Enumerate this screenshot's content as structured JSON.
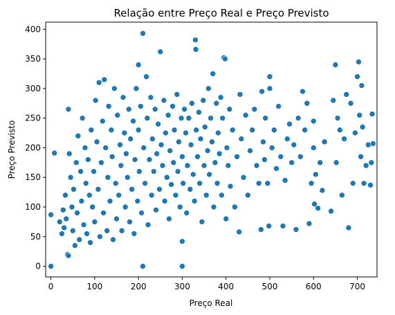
{
  "chart_data": {
    "type": "scatter",
    "title": "Relação entre Preço Real e Preço Previsto",
    "xlabel": "Preço Real",
    "ylabel": "Preço Previsto",
    "xlim": [
      -12,
      745
    ],
    "ylim": [
      -18,
      412
    ],
    "xticks": [
      0,
      100,
      200,
      300,
      400,
      500,
      600,
      700
    ],
    "yticks": [
      0,
      50,
      100,
      150,
      200,
      250,
      300,
      350,
      400
    ],
    "xtick_labels": [
      "0",
      "100",
      "200",
      "300",
      "400",
      "500",
      "600",
      "700"
    ],
    "ytick_labels": [
      "0",
      "50",
      "100",
      "150",
      "200",
      "250",
      "300",
      "350",
      "400"
    ],
    "grid": false,
    "marker_color": "#1f77b4",
    "points": [
      [
        0,
        0
      ],
      [
        0,
        87
      ],
      [
        8,
        191
      ],
      [
        210,
        0
      ],
      [
        300,
        0
      ],
      [
        20,
        75
      ],
      [
        25,
        55
      ],
      [
        28,
        95
      ],
      [
        30,
        65
      ],
      [
        33,
        120
      ],
      [
        35,
        80
      ],
      [
        38,
        20
      ],
      [
        40,
        18
      ],
      [
        40,
        265
      ],
      [
        42,
        190
      ],
      [
        45,
        150
      ],
      [
        48,
        100
      ],
      [
        50,
        60
      ],
      [
        52,
        130
      ],
      [
        55,
        35
      ],
      [
        58,
        175
      ],
      [
        60,
        90
      ],
      [
        62,
        220
      ],
      [
        65,
        45
      ],
      [
        68,
        160
      ],
      [
        70,
        110
      ],
      [
        72,
        250
      ],
      [
        75,
        70
      ],
      [
        78,
        200
      ],
      [
        80,
        140
      ],
      [
        82,
        55
      ],
      [
        85,
        180
      ],
      [
        88,
        120
      ],
      [
        90,
        40
      ],
      [
        92,
        230
      ],
      [
        95,
        100
      ],
      [
        98,
        160
      ],
      [
        100,
        75
      ],
      [
        102,
        280
      ],
      [
        105,
        210
      ],
      [
        108,
        130
      ],
      [
        110,
        310
      ],
      [
        112,
        50
      ],
      [
        115,
        175
      ],
      [
        118,
        245
      ],
      [
        120,
        90
      ],
      [
        122,
        315
      ],
      [
        125,
        200
      ],
      [
        128,
        60
      ],
      [
        130,
        150
      ],
      [
        132,
        270
      ],
      [
        135,
        110
      ],
      [
        138,
        230
      ],
      [
        140,
        185
      ],
      [
        142,
        45
      ],
      [
        145,
        300
      ],
      [
        148,
        140
      ],
      [
        150,
        80
      ],
      [
        152,
        255
      ],
      [
        155,
        120
      ],
      [
        158,
        205
      ],
      [
        160,
        170
      ],
      [
        162,
        60
      ],
      [
        165,
        285
      ],
      [
        168,
        225
      ],
      [
        170,
        100
      ],
      [
        172,
        190
      ],
      [
        175,
        150
      ],
      [
        178,
        265
      ],
      [
        180,
        75
      ],
      [
        182,
        215
      ],
      [
        185,
        130
      ],
      [
        188,
        245
      ],
      [
        190,
        55
      ],
      [
        192,
        180
      ],
      [
        195,
        300
      ],
      [
        198,
        110
      ],
      [
        200,
        230
      ],
      [
        200,
        340
      ],
      [
        202,
        160
      ],
      [
        205,
        270
      ],
      [
        207,
        90
      ],
      [
        210,
        393
      ],
      [
        212,
        200
      ],
      [
        215,
        140
      ],
      [
        218,
        320
      ],
      [
        220,
        250
      ],
      [
        222,
        70
      ],
      [
        225,
        180
      ],
      [
        228,
        285
      ],
      [
        230,
        120
      ],
      [
        232,
        215
      ],
      [
        235,
        160
      ],
      [
        238,
        265
      ],
      [
        240,
        95
      ],
      [
        242,
        190
      ],
      [
        245,
        240
      ],
      [
        248,
        130
      ],
      [
        250,
        362
      ],
      [
        252,
        205
      ],
      [
        255,
        170
      ],
      [
        258,
        280
      ],
      [
        260,
        110
      ],
      [
        262,
        225
      ],
      [
        265,
        150
      ],
      [
        268,
        255
      ],
      [
        270,
        80
      ],
      [
        272,
        195
      ],
      [
        275,
        138
      ],
      [
        278,
        270
      ],
      [
        280,
        175
      ],
      [
        282,
        230
      ],
      [
        285,
        120
      ],
      [
        288,
        290
      ],
      [
        290,
        160
      ],
      [
        292,
        210
      ],
      [
        295,
        100
      ],
      [
        298,
        250
      ],
      [
        300,
        42
      ],
      [
        300,
        185
      ],
      [
        302,
        140
      ],
      [
        305,
        265
      ],
      [
        308,
        225
      ],
      [
        310,
        90
      ],
      [
        312,
        170
      ],
      [
        315,
        250
      ],
      [
        318,
        130
      ],
      [
        320,
        205
      ],
      [
        322,
        275
      ],
      [
        325,
        155
      ],
      [
        328,
        110
      ],
      [
        330,
        382
      ],
      [
        331,
        366
      ],
      [
        332,
        230
      ],
      [
        335,
        185
      ],
      [
        338,
        260
      ],
      [
        340,
        140
      ],
      [
        342,
        215
      ],
      [
        345,
        75
      ],
      [
        348,
        280
      ],
      [
        350,
        170
      ],
      [
        352,
        235
      ],
      [
        355,
        120
      ],
      [
        358,
        195
      ],
      [
        360,
        300
      ],
      [
        362,
        155
      ],
      [
        365,
        250
      ],
      [
        368,
        210
      ],
      [
        370,
        325
      ],
      [
        372,
        100
      ],
      [
        375,
        175
      ],
      [
        378,
        275
      ],
      [
        380,
        140
      ],
      [
        382,
        225
      ],
      [
        385,
        190
      ],
      [
        388,
        285
      ],
      [
        390,
        120
      ],
      [
        392,
        250
      ],
      [
        395,
        352
      ],
      [
        398,
        350
      ],
      [
        400,
        80
      ],
      [
        402,
        200
      ],
      [
        405,
        170
      ],
      [
        408,
        265
      ],
      [
        410,
        135
      ],
      [
        415,
        230
      ],
      [
        420,
        100
      ],
      [
        425,
        185
      ],
      [
        430,
        58
      ],
      [
        432,
        290
      ],
      [
        435,
        215
      ],
      [
        440,
        150
      ],
      [
        445,
        255
      ],
      [
        450,
        120
      ],
      [
        455,
        195
      ],
      [
        460,
        230
      ],
      [
        465,
        265
      ],
      [
        470,
        170
      ],
      [
        475,
        140
      ],
      [
        480,
        62
      ],
      [
        482,
        295
      ],
      [
        485,
        210
      ],
      [
        488,
        180
      ],
      [
        490,
        250
      ],
      [
        495,
        140
      ],
      [
        498,
        68
      ],
      [
        500,
        300
      ],
      [
        500,
        320
      ],
      [
        505,
        200
      ],
      [
        510,
        230
      ],
      [
        515,
        165
      ],
      [
        520,
        270
      ],
      [
        525,
        185
      ],
      [
        530,
        68
      ],
      [
        535,
        145
      ],
      [
        540,
        215
      ],
      [
        545,
        240
      ],
      [
        550,
        175
      ],
      [
        555,
        205
      ],
      [
        560,
        62
      ],
      [
        565,
        250
      ],
      [
        570,
        185
      ],
      [
        575,
        295
      ],
      [
        580,
        230
      ],
      [
        585,
        275
      ],
      [
        590,
        72
      ],
      [
        595,
        140
      ],
      [
        600,
        200
      ],
      [
        600,
        245
      ],
      [
        602,
        105
      ],
      [
        605,
        155
      ],
      [
        610,
        98
      ],
      [
        615,
        175
      ],
      [
        620,
        128
      ],
      [
        625,
        210
      ],
      [
        640,
        93
      ],
      [
        645,
        280
      ],
      [
        650,
        340
      ],
      [
        652,
        175
      ],
      [
        655,
        250
      ],
      [
        660,
        230
      ],
      [
        665,
        120
      ],
      [
        670,
        215
      ],
      [
        675,
        290
      ],
      [
        680,
        65
      ],
      [
        685,
        275
      ],
      [
        690,
        140
      ],
      [
        695,
        225
      ],
      [
        700,
        320
      ],
      [
        703,
        345
      ],
      [
        705,
        255
      ],
      [
        708,
        185
      ],
      [
        710,
        305
      ],
      [
        712,
        235
      ],
      [
        715,
        140
      ],
      [
        720,
        170
      ],
      [
        725,
        205
      ],
      [
        730,
        137
      ],
      [
        732,
        175
      ],
      [
        734,
        257
      ],
      [
        736,
        207
      ]
    ]
  }
}
